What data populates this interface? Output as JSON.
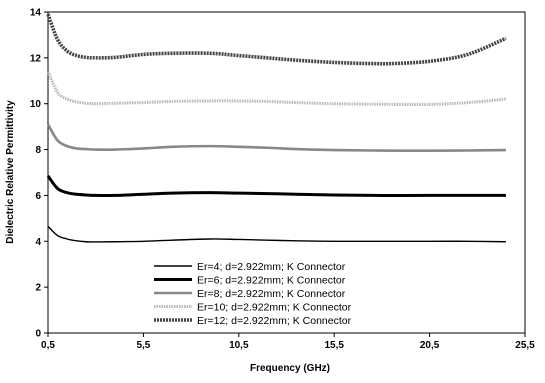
{
  "chart_data": {
    "type": "line",
    "title": "",
    "xlabel": "Frequency (GHz)",
    "ylabel": "Dielectric Relative Permittivity",
    "xlim": [
      0.5,
      25.5
    ],
    "ylim": [
      0,
      14
    ],
    "xticks": [
      0.5,
      5.5,
      10.5,
      15.5,
      20.5,
      25.5
    ],
    "xtick_labels": [
      "0,5",
      "5,5",
      "10,5",
      "15,5",
      "20,5",
      "25,5"
    ],
    "yticks": [
      0,
      2,
      4,
      6,
      8,
      10,
      12,
      14
    ],
    "ytick_labels": [
      "0",
      "2",
      "4",
      "6",
      "8",
      "10",
      "12",
      "14"
    ],
    "grid": true,
    "grid_style": "dashed",
    "legend_position": "bottom-center",
    "series": [
      {
        "name": "Er=4; d=2.922mm; K Connector",
        "style": "thin-solid",
        "color": "#000000",
        "x": [
          0.5,
          1.0,
          1.5,
          2.0,
          2.5,
          3.0,
          4.0,
          5.5,
          7.0,
          9.0,
          10.5,
          12.0,
          13.5,
          15.5,
          17.5,
          20.5,
          22.5,
          24.5
        ],
        "y": [
          4.65,
          4.25,
          4.1,
          4.02,
          3.98,
          3.97,
          3.98,
          4.0,
          4.05,
          4.1,
          4.08,
          4.05,
          4.02,
          4.0,
          4.0,
          4.0,
          4.0,
          3.98
        ]
      },
      {
        "name": "Er=6; d=2.922mm; K Connector",
        "style": "thick-solid",
        "color": "#000000",
        "x": [
          0.5,
          1.0,
          1.5,
          2.0,
          2.5,
          3.0,
          4.0,
          5.5,
          7.0,
          9.0,
          10.5,
          12.0,
          13.5,
          15.5,
          17.5,
          20.5,
          22.5,
          24.5
        ],
        "y": [
          6.85,
          6.3,
          6.12,
          6.05,
          6.02,
          6.0,
          6.0,
          6.05,
          6.1,
          6.12,
          6.1,
          6.08,
          6.05,
          6.02,
          6.0,
          6.0,
          6.0,
          6.0
        ]
      },
      {
        "name": "Er=8; d=2.922mm; K Connector",
        "style": "medium-gray",
        "color": "#888888",
        "x": [
          0.5,
          1.0,
          1.5,
          2.0,
          2.5,
          3.0,
          4.0,
          5.5,
          7.0,
          9.0,
          10.5,
          12.0,
          13.5,
          15.5,
          17.5,
          20.5,
          22.5,
          24.5
        ],
        "y": [
          9.1,
          8.4,
          8.15,
          8.05,
          8.02,
          8.0,
          8.0,
          8.05,
          8.12,
          8.15,
          8.12,
          8.08,
          8.02,
          7.98,
          7.96,
          7.95,
          7.96,
          7.98
        ]
      },
      {
        "name": "Er=10; d=2.922mm; K Connector",
        "style": "light-dotted",
        "color": "#b8b8b8",
        "x": [
          0.5,
          1.0,
          1.5,
          2.0,
          2.5,
          3.0,
          4.0,
          5.5,
          7.0,
          9.0,
          10.5,
          12.0,
          13.5,
          15.5,
          17.5,
          20.5,
          22.5,
          24.5
        ],
        "y": [
          11.4,
          10.5,
          10.2,
          10.08,
          10.02,
          10.0,
          10.02,
          10.05,
          10.1,
          10.12,
          10.12,
          10.1,
          10.05,
          10.0,
          9.98,
          9.97,
          10.05,
          10.2
        ]
      },
      {
        "name": "Er=12; d=2.922mm; K Connector",
        "style": "dark-dotted",
        "color": "#444444",
        "x": [
          0.5,
          1.0,
          1.5,
          2.0,
          2.5,
          3.0,
          4.0,
          5.5,
          7.0,
          9.0,
          10.5,
          12.0,
          13.5,
          15.5,
          17.5,
          18.5,
          20.5,
          22.5,
          24.5
        ],
        "y": [
          13.9,
          12.8,
          12.3,
          12.1,
          12.02,
          12.0,
          12.02,
          12.15,
          12.2,
          12.2,
          12.1,
          12.0,
          11.9,
          11.8,
          11.75,
          11.75,
          11.85,
          12.15,
          12.85
        ]
      }
    ]
  }
}
